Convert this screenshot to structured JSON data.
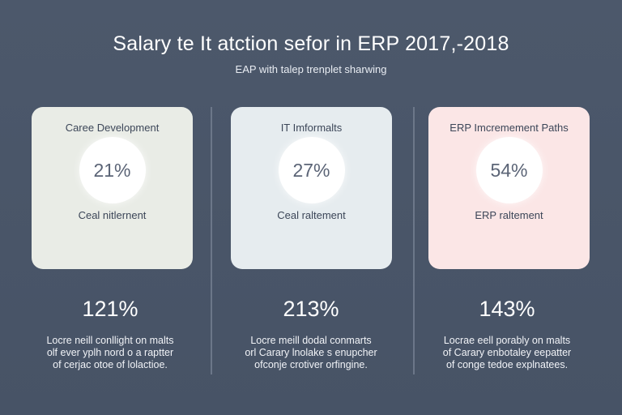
{
  "header": {
    "title": "Salary te It atction sefor in ERP 2017,-2018",
    "subtitle": "EAP with talep trenplet sharwing"
  },
  "colors": {
    "background": "#4a5669",
    "card_1": "#e9ece6",
    "card_2": "#e6ecef",
    "card_3": "#fbe6e6"
  },
  "cards": [
    {
      "label": "Caree Development",
      "percent": "21%",
      "caption": "Ceal nitlernent",
      "big_value": "121%",
      "desc": [
        "Locre neill conllight on malts",
        "olf ever yplh nord o a raptter",
        "of cerjac otoe of lolactioe."
      ]
    },
    {
      "label": "IT Imformalts",
      "percent": "27%",
      "caption": "Ceal raltement",
      "big_value": "213%",
      "desc": [
        "Locre meill dodal conmarts",
        "orl Carary lnolake s enupcher",
        "ofconje crotiver orfingine."
      ]
    },
    {
      "label": "ERP Imcremement Paths",
      "percent": "54%",
      "caption": "ERP raltement",
      "big_value": "143%",
      "desc": [
        "Locrae eell porably on malts",
        "of Carary enbotaley eepatter",
        "of conge tedoe explnatees."
      ]
    }
  ]
}
